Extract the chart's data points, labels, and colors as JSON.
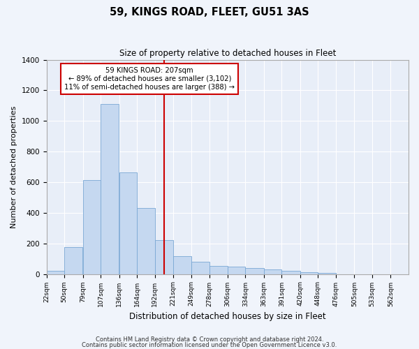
{
  "title": "59, KINGS ROAD, FLEET, GU51 3AS",
  "subtitle": "Size of property relative to detached houses in Fleet",
  "xlabel": "Distribution of detached houses by size in Fleet",
  "ylabel": "Number of detached properties",
  "annotation_line1": "59 KINGS ROAD: 207sqm",
  "annotation_line2": "← 89% of detached houses are smaller (3,102)",
  "annotation_line3": "11% of semi-detached houses are larger (388) →",
  "bin_edges": [
    22,
    50,
    79,
    107,
    136,
    164,
    192,
    221,
    249,
    278,
    306,
    334,
    363,
    391,
    420,
    448,
    476,
    505,
    533,
    562,
    590
  ],
  "bar_heights": [
    20,
    175,
    615,
    1110,
    665,
    430,
    220,
    115,
    80,
    55,
    50,
    40,
    30,
    20,
    10,
    5,
    0,
    0,
    0,
    0
  ],
  "bar_color": "#c5d8f0",
  "bar_edge_color": "#7aa8d4",
  "vline_color": "#cc0000",
  "vline_x": 207,
  "annotation_box_facecolor": "#ffffff",
  "annotation_box_edgecolor": "#cc0000",
  "fig_facecolor": "#f0f4fb",
  "ax_facecolor": "#e8eef8",
  "grid_color": "#ffffff",
  "ylim": [
    0,
    1400
  ],
  "yticks": [
    0,
    200,
    400,
    600,
    800,
    1000,
    1200,
    1400
  ],
  "footer_line1": "Contains HM Land Registry data © Crown copyright and database right 2024.",
  "footer_line2": "Contains public sector information licensed under the Open Government Licence v3.0."
}
